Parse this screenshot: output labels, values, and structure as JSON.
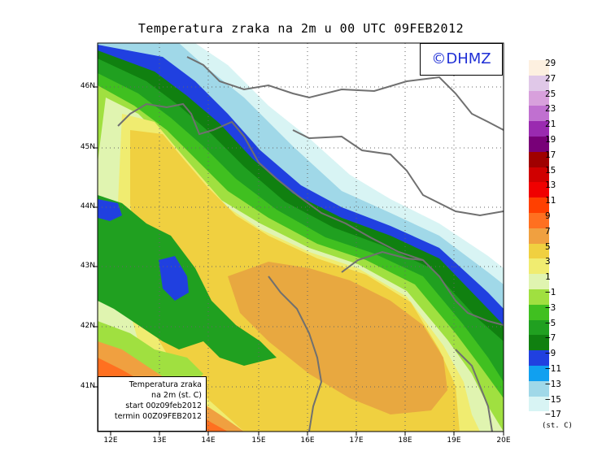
{
  "title": "Temperatura zraka na 2m u 00 UTC 09FEB2012",
  "logo": "©DHMZ",
  "info": {
    "line1": "Temperatura zraka",
    "line2": "na 2m (st. C)",
    "line3": "start 00z09feb2012",
    "line4": "termin 00Z09FEB2012"
  },
  "axes": {
    "lat_ticks": [
      "46N",
      "45N",
      "44N",
      "43N",
      "42N",
      "41N"
    ],
    "lon_ticks": [
      "12E",
      "13E",
      "14E",
      "15E",
      "16E",
      "17E",
      "18E",
      "19E",
      "20E"
    ]
  },
  "legend": {
    "unit": "(st. C)",
    "labels": [
      "29",
      "27",
      "25",
      "23",
      "21",
      "19",
      "17",
      "15",
      "13",
      "11",
      "9",
      "7",
      "5",
      "3",
      "1",
      "−1",
      "−3",
      "−5",
      "−7",
      "−9",
      "−11",
      "−13",
      "−15",
      "−17"
    ],
    "colors": [
      "#fdf0e0",
      "#e0c8e8",
      "#d8a0dc",
      "#c070d0",
      "#9a2ab0",
      "#780078",
      "#a00000",
      "#d00000",
      "#f00000",
      "#ff4000",
      "#ff7020",
      "#f0a040",
      "#f0d040",
      "#f0ec70",
      "#e0f4b0",
      "#a0e040",
      "#40c020",
      "#20a020",
      "#108010",
      "#2040e0",
      "#10a0f0",
      "#a0d8e8",
      "#d8f4f4",
      "#ffffff"
    ]
  },
  "colors": {
    "sea_warm": "#f0c850",
    "sea_warmest": "#e8a840",
    "coast_green": "#20a020",
    "coast_blue": "#2040e0",
    "land_cold": "#ffffff",
    "border": "#707070"
  }
}
